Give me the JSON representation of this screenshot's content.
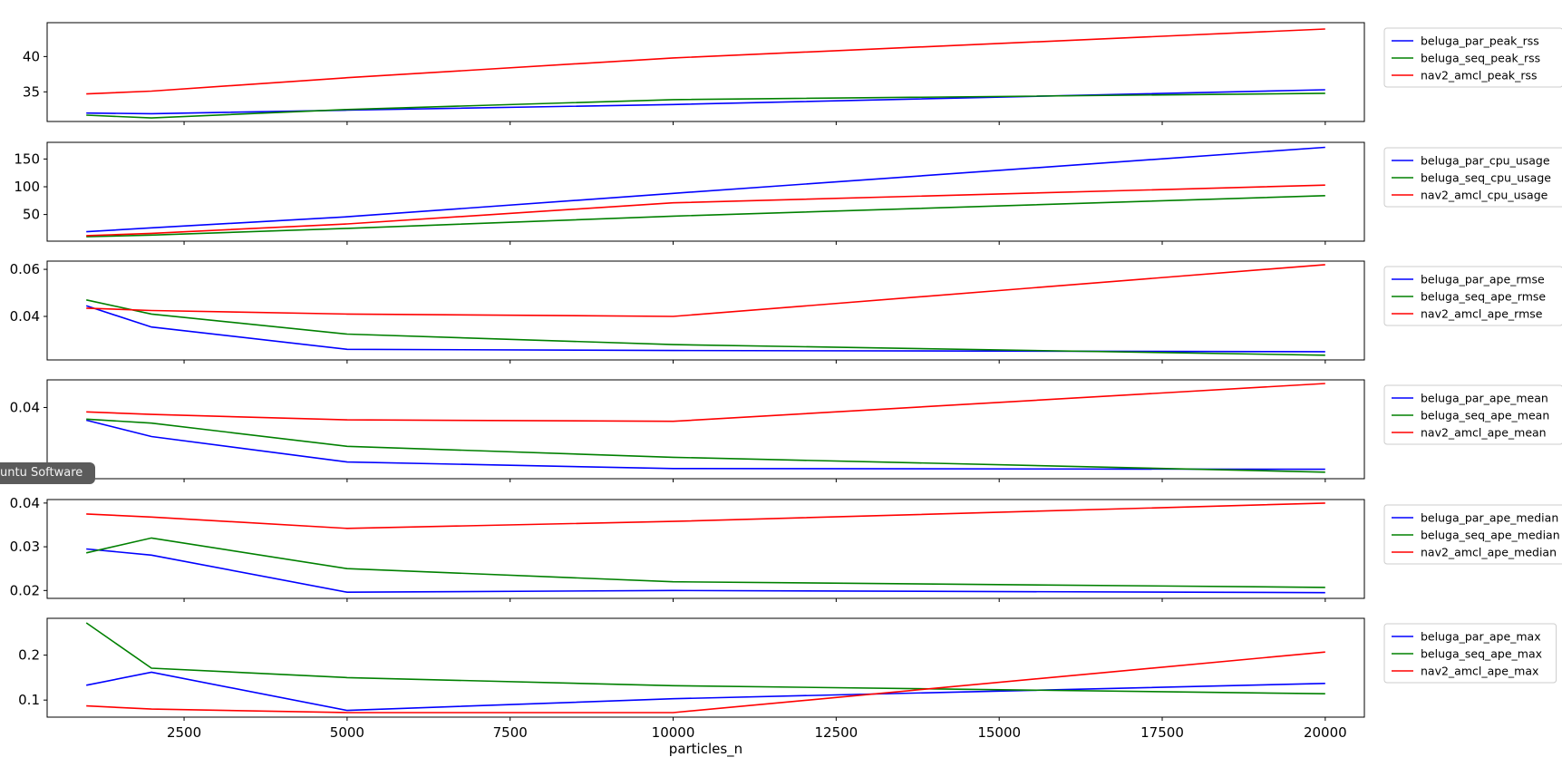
{
  "chart_data": [
    {
      "type": "line",
      "x": [
        1000,
        2000,
        5000,
        10000,
        20000
      ],
      "ylim": [
        30.8,
        44.8
      ],
      "yticks": [
        35,
        40
      ],
      "series": [
        {
          "name": "beluga_par_peak_rss",
          "color": "#0000ff",
          "values": [
            32.0,
            31.9,
            32.4,
            33.2,
            35.3
          ]
        },
        {
          "name": "beluga_seq_peak_rss",
          "color": "#008000",
          "values": [
            31.7,
            31.3,
            32.5,
            33.9,
            34.8
          ]
        },
        {
          "name": "nav2_amcl_peak_rss",
          "color": "#ff0000",
          "values": [
            34.7,
            35.1,
            37.0,
            39.8,
            43.9
          ]
        }
      ]
    },
    {
      "type": "line",
      "x": [
        1000,
        2000,
        5000,
        10000,
        20000
      ],
      "ylim": [
        2,
        180
      ],
      "yticks": [
        50,
        100,
        150
      ],
      "series": [
        {
          "name": "beluga_par_cpu_usage",
          "color": "#0000ff",
          "values": [
            19,
            26,
            46,
            88,
            171
          ]
        },
        {
          "name": "beluga_seq_cpu_usage",
          "color": "#008000",
          "values": [
            10,
            13,
            25,
            47,
            84
          ]
        },
        {
          "name": "nav2_amcl_cpu_usage",
          "color": "#ff0000",
          "values": [
            12,
            16,
            33,
            71,
            103
          ]
        }
      ]
    },
    {
      "type": "line",
      "x": [
        1000,
        2000,
        5000,
        10000,
        20000
      ],
      "ylim": [
        0.0215,
        0.0635
      ],
      "yticks": [
        0.04,
        0.06
      ],
      "series": [
        {
          "name": "beluga_par_ape_rmse",
          "color": "#0000ff",
          "values": [
            0.0445,
            0.0355,
            0.026,
            0.0255,
            0.025
          ]
        },
        {
          "name": "beluga_seq_ape_rmse",
          "color": "#008000",
          "values": [
            0.047,
            0.041,
            0.0325,
            0.028,
            0.0235
          ]
        },
        {
          "name": "nav2_amcl_ape_rmse",
          "color": "#ff0000",
          "values": [
            0.0435,
            0.0425,
            0.041,
            0.04,
            0.062
          ]
        }
      ]
    },
    {
      "type": "line",
      "x": [
        1000,
        2000,
        5000,
        10000,
        20000
      ],
      "ylim": [
        0.0204,
        0.0476
      ],
      "yticks": [
        0.04
      ],
      "series": [
        {
          "name": "beluga_par_ape_mean",
          "color": "#0000ff",
          "values": [
            0.0365,
            0.032,
            0.025,
            0.0232,
            0.023
          ]
        },
        {
          "name": "beluga_seq_ape_mean",
          "color": "#008000",
          "values": [
            0.0368,
            0.0357,
            0.0293,
            0.0263,
            0.0222
          ]
        },
        {
          "name": "nav2_amcl_ape_mean",
          "color": "#ff0000",
          "values": [
            0.0388,
            0.0381,
            0.0366,
            0.0362,
            0.0466
          ]
        }
      ]
    },
    {
      "type": "line",
      "x": [
        1000,
        2000,
        5000,
        10000,
        20000
      ],
      "ylim": [
        0.0182,
        0.0408
      ],
      "yticks": [
        0.02,
        0.03,
        0.04
      ],
      "series": [
        {
          "name": "beluga_par_ape_median",
          "color": "#0000ff",
          "values": [
            0.0295,
            0.0281,
            0.0196,
            0.02,
            0.0195
          ]
        },
        {
          "name": "beluga_seq_ape_median",
          "color": "#008000",
          "values": [
            0.0286,
            0.032,
            0.025,
            0.022,
            0.0207
          ]
        },
        {
          "name": "nav2_amcl_ape_median",
          "color": "#ff0000",
          "values": [
            0.0375,
            0.0368,
            0.0342,
            0.0358,
            0.04
          ]
        }
      ]
    },
    {
      "type": "line",
      "x": [
        1000,
        2000,
        5000,
        10000,
        20000
      ],
      "xlabel": "particles_n",
      "xticks": [
        2500,
        5000,
        7500,
        10000,
        12500,
        15000,
        17500,
        20000
      ],
      "ylim": [
        0.062,
        0.282
      ],
      "yticks": [
        0.1,
        0.2
      ],
      "series": [
        {
          "name": "beluga_par_ape_max",
          "color": "#0000ff",
          "values": [
            0.133,
            0.162,
            0.077,
            0.103,
            0.137
          ]
        },
        {
          "name": "beluga_seq_ape_max",
          "color": "#008000",
          "values": [
            0.272,
            0.171,
            0.15,
            0.132,
            0.114
          ]
        },
        {
          "name": "nav2_amcl_ape_max",
          "color": "#ff0000",
          "values": [
            0.087,
            0.08,
            0.072,
            0.072,
            0.207
          ]
        }
      ]
    }
  ],
  "overlay": {
    "tooltip_text": "untu Software"
  }
}
